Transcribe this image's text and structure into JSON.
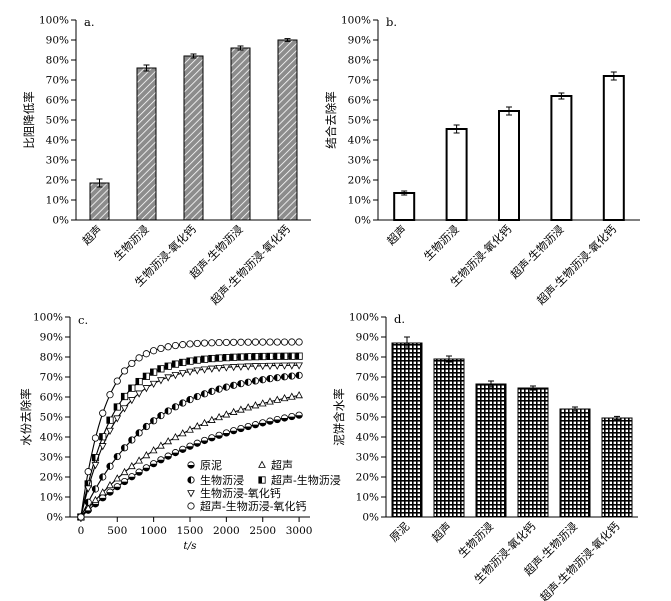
{
  "chart_data": [
    {
      "panel": "a",
      "type": "bar",
      "title": "a.",
      "ylabel": "比阻降低率",
      "xlabel": "",
      "ylim": [
        0,
        100
      ],
      "yticks": [
        "0%",
        "10%",
        "20%",
        "30%",
        "40%",
        "50%",
        "60%",
        "70%",
        "80%",
        "90%",
        "100%"
      ],
      "categories": [
        "超声",
        "生物沥浸",
        "生物沥浸-氧化钙",
        "超声-生物沥浸",
        "超声-生物沥浸-氧化钙"
      ],
      "values": [
        18.5,
        76,
        82,
        86,
        90
      ],
      "errors": [
        2,
        1.5,
        1,
        1,
        0.7
      ],
      "bar_fill": "diagonal-hatch",
      "bar_color": "#888888"
    },
    {
      "panel": "b",
      "type": "bar",
      "title": "b.",
      "ylabel": "结合去除率",
      "xlabel": "",
      "ylim": [
        0,
        100
      ],
      "yticks": [
        "0%",
        "10%",
        "20%",
        "30%",
        "40%",
        "50%",
        "60%",
        "70%",
        "80%",
        "90%",
        "100%"
      ],
      "categories": [
        "超声",
        "生物沥浸",
        "生物沥浸-氧化钙",
        "超声-生物沥浸",
        "超声-生物沥浸-氧化钙"
      ],
      "values": [
        13.5,
        45.5,
        54.5,
        62,
        72
      ],
      "errors": [
        1,
        2,
        2,
        1.5,
        2
      ],
      "bar_fill": "white"
    },
    {
      "panel": "c",
      "type": "scatter",
      "title": "c.",
      "ylabel": "水份去除率",
      "xlabel": "t/s",
      "xlim": [
        -150,
        3150
      ],
      "ylim": [
        0,
        100
      ],
      "xticks": [
        0,
        500,
        1000,
        1500,
        2000,
        2500,
        3000
      ],
      "yticks": [
        "0%",
        "10%",
        "20%",
        "30%",
        "40%",
        "50%",
        "60%",
        "70%",
        "80%",
        "90%",
        "100%"
      ],
      "fit_curves": true,
      "series": [
        {
          "name": "原泥",
          "marker": "circle-bottom-half",
          "plateau": 63,
          "rate": 0.00055
        },
        {
          "name": "超声",
          "marker": "triangle-up",
          "plateau": 72,
          "rate": 0.00062
        },
        {
          "name": "生物沥浸",
          "marker": "circle-left-half",
          "plateau": 74,
          "rate": 0.00105
        },
        {
          "name": "超声-生物沥浸",
          "marker": "square-half",
          "plateau": 80.5,
          "rate": 0.0023
        },
        {
          "name": "生物沥浸-氧化钙",
          "marker": "triangle-down",
          "plateau": 76,
          "rate": 0.0021
        },
        {
          "name": "超声-生物沥浸-氧化钙",
          "marker": "circle-open",
          "plateau": 87.5,
          "rate": 0.003
        }
      ],
      "sample_t": [
        0,
        100,
        200,
        300,
        400,
        500,
        600,
        700,
        800,
        900,
        1000,
        1100,
        1200,
        1300,
        1400,
        1500,
        1600,
        1700,
        1800,
        1900,
        2000,
        2100,
        2200,
        2300,
        2400,
        2500,
        2600,
        2700,
        2800,
        2900,
        3000
      ],
      "legend": [
        {
          "label": "原泥",
          "marker": "circle-bottom-half"
        },
        {
          "label": "超声",
          "marker": "triangle-up"
        },
        {
          "label": "生物沥浸",
          "marker": "circle-left-half"
        },
        {
          "label": "超声-生物沥浸",
          "marker": "square-half"
        },
        {
          "label": "生物沥浸-氧化钙",
          "marker": "triangle-down"
        },
        {
          "label": "超声-生物沥浸-氧化钙",
          "marker": "circle-open"
        }
      ]
    },
    {
      "panel": "d",
      "type": "bar",
      "title": "d.",
      "ylabel": "泥饼含水率",
      "xlabel": "",
      "ylim": [
        0,
        100
      ],
      "yticks": [
        "0%",
        "10%",
        "20%",
        "30%",
        "40%",
        "50%",
        "60%",
        "70%",
        "80%",
        "90%",
        "100%"
      ],
      "categories": [
        "原泥",
        "超声",
        "生物沥浸",
        "生物沥浸-氧化钙",
        "超声-生物沥浸",
        "超声-生物沥浸-氧化钙"
      ],
      "values": [
        87,
        79,
        66.5,
        64.5,
        54,
        49.5
      ],
      "errors": [
        3,
        1.5,
        1.5,
        1,
        1,
        0.8
      ],
      "bar_fill": "grid-hatch",
      "bar_color": "#000000"
    }
  ]
}
